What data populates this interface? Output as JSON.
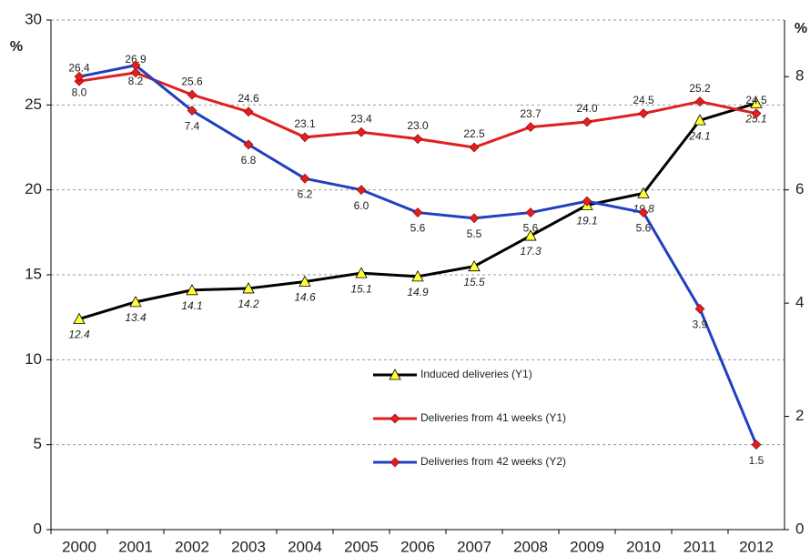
{
  "chart_data": {
    "type": "line",
    "y_label": "%",
    "y2_label": "%",
    "categories": [
      "2000",
      "2001",
      "2002",
      "2003",
      "2004",
      "2005",
      "2006",
      "2007",
      "2008",
      "2009",
      "2010",
      "2011",
      "2012"
    ],
    "ylim": [
      0,
      30
    ],
    "yticks": [
      0,
      5,
      10,
      15,
      20,
      25,
      30
    ],
    "y2lim": [
      0,
      9
    ],
    "y2ticks": [
      0,
      2,
      4,
      6,
      8
    ],
    "grid": true,
    "series": [
      {
        "name": "Induced deliveries (Y1)",
        "color": "#000000",
        "marker": "triangle",
        "marker_color": "#ffff33",
        "values": [
          12.4,
          13.4,
          14.1,
          14.2,
          14.6,
          15.1,
          14.9,
          15.5,
          17.3,
          19.1,
          19.8,
          24.1,
          25.1
        ],
        "value_labels": [
          "12.4",
          "13.4",
          "14.1",
          "14.2",
          "14.6",
          "15.1",
          "14.9",
          "15.5",
          "17.3",
          "19.1",
          "19.8",
          "24.1",
          "25.1"
        ]
      },
      {
        "name": "Deliveries from 41 weeks (Y1)",
        "color": "#e02020",
        "marker": "diamond",
        "marker_color": "#e02020",
        "values": [
          26.4,
          26.9,
          25.6,
          24.6,
          23.1,
          23.4,
          23.0,
          22.5,
          23.7,
          24.0,
          24.5,
          25.2,
          24.5
        ],
        "value_labels": [
          "26.4",
          "26.9",
          "25.6",
          "24.6",
          "23.1",
          "23.4",
          "23.0",
          "22.5",
          "23.7",
          "24.0",
          "24.5",
          "25.2",
          "24.5"
        ]
      },
      {
        "name": "Deliveries from 42 weeks (Y2)",
        "axis": "y2",
        "color": "#2040c0",
        "marker": "diamond",
        "marker_color": "#e02020",
        "values": [
          8.0,
          8.2,
          7.4,
          6.8,
          6.2,
          6.0,
          5.6,
          5.5,
          5.6,
          5.8,
          5.6,
          3.9,
          1.5
        ],
        "value_labels": [
          "8.0",
          "8.2",
          "7.4",
          "6.8",
          "6.2",
          "6.0",
          "5.6",
          "5.5",
          "5.6",
          null,
          "5.6",
          "3.9",
          "1.5"
        ]
      }
    ]
  }
}
